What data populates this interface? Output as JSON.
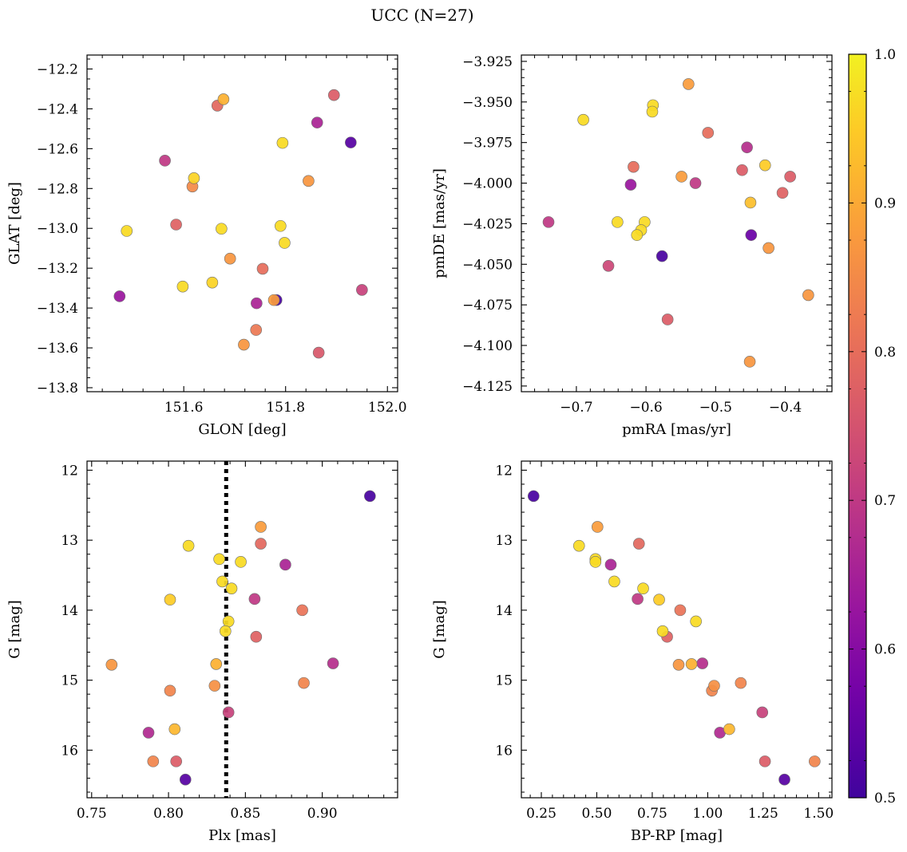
{
  "figure": {
    "title": "UCC (N=27)"
  },
  "colorbar": {
    "min": 0.5,
    "max": 1.0,
    "ticks": [
      0.5,
      0.6,
      0.7,
      0.8,
      0.9,
      1.0
    ],
    "tick_labels": [
      "0.5",
      "0.6",
      "0.7",
      "0.8",
      "0.9",
      "1.0"
    ],
    "colormap": "plasma",
    "colormap_range": [
      0.1,
      0.98
    ]
  },
  "chart_data": [
    {
      "type": "scatter",
      "xlabel": "GLON [deg]",
      "ylabel": "GLAT [deg]",
      "xlim": [
        151.41,
        152.02
      ],
      "ylim": [
        -13.82,
        -12.13
      ],
      "xticks": [
        151.6,
        151.8,
        152.0
      ],
      "xtick_labels": [
        "151.6",
        "151.8",
        "152.0"
      ],
      "yticks": [
        -13.8,
        -13.6,
        -13.4,
        -13.2,
        -13.0,
        -12.8,
        -12.6,
        -12.4,
        -12.2
      ],
      "ytick_labels": [
        "−13.8",
        "−13.6",
        "−13.4",
        "−13.2",
        "−13.0",
        "−12.8",
        "−12.6",
        "−12.4",
        "−12.2"
      ],
      "invert_y": false,
      "points": [
        {
          "x": 151.678,
          "y": -12.352,
          "c": 0.91
        },
        {
          "x": 151.666,
          "y": -12.384,
          "c": 0.79
        },
        {
          "x": 151.895,
          "y": -12.331,
          "c": 0.77
        },
        {
          "x": 151.862,
          "y": -12.469,
          "c": 0.66
        },
        {
          "x": 151.928,
          "y": -12.569,
          "c": 0.53
        },
        {
          "x": 151.794,
          "y": -12.571,
          "c": 0.97
        },
        {
          "x": 151.563,
          "y": -12.66,
          "c": 0.7
        },
        {
          "x": 151.62,
          "y": -12.748,
          "c": 0.96
        },
        {
          "x": 151.617,
          "y": -12.79,
          "c": 0.85
        },
        {
          "x": 151.845,
          "y": -12.762,
          "c": 0.87
        },
        {
          "x": 151.488,
          "y": -13.013,
          "c": 0.97
        },
        {
          "x": 151.585,
          "y": -12.981,
          "c": 0.78
        },
        {
          "x": 151.674,
          "y": -13.002,
          "c": 0.97
        },
        {
          "x": 151.79,
          "y": -12.988,
          "c": 0.97
        },
        {
          "x": 151.798,
          "y": -13.073,
          "c": 0.97
        },
        {
          "x": 151.691,
          "y": -13.152,
          "c": 0.87
        },
        {
          "x": 151.755,
          "y": -13.203,
          "c": 0.8
        },
        {
          "x": 151.598,
          "y": -13.292,
          "c": 0.97
        },
        {
          "x": 151.656,
          "y": -13.272,
          "c": 0.96
        },
        {
          "x": 151.474,
          "y": -13.341,
          "c": 0.63
        },
        {
          "x": 151.95,
          "y": -13.309,
          "c": 0.72
        },
        {
          "x": 151.743,
          "y": -13.376,
          "c": 0.66
        },
        {
          "x": 151.782,
          "y": -13.36,
          "c": 0.51
        },
        {
          "x": 151.777,
          "y": -13.36,
          "c": 0.88
        },
        {
          "x": 151.742,
          "y": -13.51,
          "c": 0.82
        },
        {
          "x": 151.718,
          "y": -13.584,
          "c": 0.87
        },
        {
          "x": 151.865,
          "y": -13.624,
          "c": 0.76
        }
      ]
    },
    {
      "type": "scatter",
      "xlabel": "pmRA [mas/yr]",
      "ylabel": "pmDE [mas/yr]",
      "xlim": [
        -0.779,
        -0.333
      ],
      "ylim": [
        -4.1285,
        -3.9211
      ],
      "xticks": [
        -0.7,
        -0.6,
        -0.5,
        -0.4
      ],
      "xtick_labels": [
        "−0.7",
        "−0.6",
        "−0.5",
        "−0.4"
      ],
      "yticks": [
        -4.125,
        -4.1,
        -4.075,
        -4.05,
        -4.025,
        -4.0,
        -3.975,
        -3.95,
        -3.925
      ],
      "ytick_labels": [
        "−4.125",
        "−4.100",
        "−4.075",
        "−4.050",
        "−4.025",
        "−4.000",
        "−3.975",
        "−3.950",
        "−3.925"
      ],
      "invert_y": false,
      "points": [
        {
          "x": -0.539,
          "y": -3.939,
          "c": 0.88
        },
        {
          "x": -0.59,
          "y": -3.952,
          "c": 0.97
        },
        {
          "x": -0.591,
          "y": -3.956,
          "c": 0.97
        },
        {
          "x": -0.69,
          "y": -3.961,
          "c": 0.97
        },
        {
          "x": -0.511,
          "y": -3.969,
          "c": 0.8
        },
        {
          "x": -0.455,
          "y": -3.978,
          "c": 0.68
        },
        {
          "x": -0.429,
          "y": -3.989,
          "c": 0.95
        },
        {
          "x": -0.618,
          "y": -3.99,
          "c": 0.8
        },
        {
          "x": -0.462,
          "y": -3.992,
          "c": 0.77
        },
        {
          "x": -0.393,
          "y": -3.996,
          "c": 0.77
        },
        {
          "x": -0.549,
          "y": -3.996,
          "c": 0.88
        },
        {
          "x": -0.529,
          "y": -4.0,
          "c": 0.7
        },
        {
          "x": -0.622,
          "y": -4.001,
          "c": 0.63
        },
        {
          "x": -0.404,
          "y": -4.006,
          "c": 0.78
        },
        {
          "x": -0.45,
          "y": -4.012,
          "c": 0.93
        },
        {
          "x": -0.74,
          "y": -4.024,
          "c": 0.7
        },
        {
          "x": -0.641,
          "y": -4.024,
          "c": 0.97
        },
        {
          "x": -0.602,
          "y": -4.024,
          "c": 0.97
        },
        {
          "x": -0.607,
          "y": -4.029,
          "c": 0.97
        },
        {
          "x": -0.613,
          "y": -4.032,
          "c": 0.97
        },
        {
          "x": -0.449,
          "y": -4.032,
          "c": 0.56
        },
        {
          "x": -0.424,
          "y": -4.04,
          "c": 0.87
        },
        {
          "x": -0.577,
          "y": -4.045,
          "c": 0.51
        },
        {
          "x": -0.654,
          "y": -4.051,
          "c": 0.73
        },
        {
          "x": -0.367,
          "y": -4.069,
          "c": 0.87
        },
        {
          "x": -0.569,
          "y": -4.084,
          "c": 0.77
        },
        {
          "x": -0.451,
          "y": -4.11,
          "c": 0.87
        }
      ]
    },
    {
      "type": "scatter",
      "xlabel": "Plx [mas]",
      "ylabel": "G [mag]",
      "xlim": [
        0.747,
        0.949
      ],
      "ylim": [
        11.87,
        16.68
      ],
      "xticks": [
        0.75,
        0.8,
        0.85,
        0.9
      ],
      "xtick_labels": [
        "0.75",
        "0.80",
        "0.85",
        "0.90"
      ],
      "yticks": [
        12,
        13,
        14,
        15,
        16
      ],
      "ytick_labels": [
        "12",
        "13",
        "14",
        "15",
        "16"
      ],
      "invert_y": true,
      "vline": {
        "x": 0.8375,
        "style": "dotted"
      },
      "points": [
        {
          "x": 0.931,
          "y": 12.37,
          "c": 0.51
        },
        {
          "x": 0.86,
          "y": 12.81,
          "c": 0.88
        },
        {
          "x": 0.86,
          "y": 13.05,
          "c": 0.79
        },
        {
          "x": 0.813,
          "y": 13.08,
          "c": 0.97
        },
        {
          "x": 0.833,
          "y": 13.27,
          "c": 0.97
        },
        {
          "x": 0.847,
          "y": 13.31,
          "c": 0.97
        },
        {
          "x": 0.876,
          "y": 13.35,
          "c": 0.66
        },
        {
          "x": 0.835,
          "y": 13.59,
          "c": 0.97
        },
        {
          "x": 0.841,
          "y": 13.69,
          "c": 0.97
        },
        {
          "x": 0.801,
          "y": 13.85,
          "c": 0.95
        },
        {
          "x": 0.856,
          "y": 13.84,
          "c": 0.7
        },
        {
          "x": 0.887,
          "y": 14.0,
          "c": 0.81
        },
        {
          "x": 0.839,
          "y": 14.16,
          "c": 0.97
        },
        {
          "x": 0.837,
          "y": 14.3,
          "c": 0.97
        },
        {
          "x": 0.857,
          "y": 14.38,
          "c": 0.78
        },
        {
          "x": 0.763,
          "y": 14.78,
          "c": 0.87
        },
        {
          "x": 0.831,
          "y": 14.77,
          "c": 0.91
        },
        {
          "x": 0.907,
          "y": 14.76,
          "c": 0.68
        },
        {
          "x": 0.83,
          "y": 15.08,
          "c": 0.86
        },
        {
          "x": 0.888,
          "y": 15.04,
          "c": 0.84
        },
        {
          "x": 0.801,
          "y": 15.15,
          "c": 0.84
        },
        {
          "x": 0.839,
          "y": 15.46,
          "c": 0.72
        },
        {
          "x": 0.804,
          "y": 15.7,
          "c": 0.92
        },
        {
          "x": 0.787,
          "y": 15.75,
          "c": 0.67
        },
        {
          "x": 0.79,
          "y": 16.16,
          "c": 0.84
        },
        {
          "x": 0.805,
          "y": 16.16,
          "c": 0.77
        },
        {
          "x": 0.811,
          "y": 16.42,
          "c": 0.53
        }
      ]
    },
    {
      "type": "scatter",
      "xlabel": "BP-RP [mag]",
      "ylabel": "G [mag]",
      "xlim": [
        0.16,
        1.56
      ],
      "ylim": [
        11.87,
        16.68
      ],
      "xticks": [
        0.25,
        0.5,
        0.75,
        1.0,
        1.25,
        1.5
      ],
      "xtick_labels": [
        "0.25",
        "0.50",
        "0.75",
        "1.00",
        "1.25",
        "1.50"
      ],
      "yticks": [
        12,
        13,
        14,
        15,
        16
      ],
      "ytick_labels": [
        "12",
        "13",
        "14",
        "15",
        "16"
      ],
      "invert_y": true,
      "points": [
        {
          "x": 0.215,
          "y": 12.37,
          "c": 0.51
        },
        {
          "x": 0.503,
          "y": 12.81,
          "c": 0.88
        },
        {
          "x": 0.69,
          "y": 13.05,
          "c": 0.79
        },
        {
          "x": 0.42,
          "y": 13.08,
          "c": 0.97
        },
        {
          "x": 0.494,
          "y": 13.27,
          "c": 0.97
        },
        {
          "x": 0.494,
          "y": 13.31,
          "c": 0.97
        },
        {
          "x": 0.563,
          "y": 13.35,
          "c": 0.66
        },
        {
          "x": 0.579,
          "y": 13.59,
          "c": 0.97
        },
        {
          "x": 0.709,
          "y": 13.69,
          "c": 0.97
        },
        {
          "x": 0.781,
          "y": 13.85,
          "c": 0.95
        },
        {
          "x": 0.684,
          "y": 13.84,
          "c": 0.7
        },
        {
          "x": 0.876,
          "y": 14.0,
          "c": 0.81
        },
        {
          "x": 0.947,
          "y": 14.16,
          "c": 0.97
        },
        {
          "x": 0.797,
          "y": 14.3,
          "c": 0.97
        },
        {
          "x": 0.817,
          "y": 14.38,
          "c": 0.78
        },
        {
          "x": 0.869,
          "y": 14.78,
          "c": 0.87
        },
        {
          "x": 0.927,
          "y": 14.77,
          "c": 0.91
        },
        {
          "x": 0.976,
          "y": 14.76,
          "c": 0.68
        },
        {
          "x": 1.029,
          "y": 15.08,
          "c": 0.86
        },
        {
          "x": 1.149,
          "y": 15.04,
          "c": 0.84
        },
        {
          "x": 1.019,
          "y": 15.15,
          "c": 0.84
        },
        {
          "x": 1.246,
          "y": 15.46,
          "c": 0.72
        },
        {
          "x": 1.097,
          "y": 15.7,
          "c": 0.92
        },
        {
          "x": 1.055,
          "y": 15.75,
          "c": 0.67
        },
        {
          "x": 1.482,
          "y": 16.16,
          "c": 0.84
        },
        {
          "x": 1.258,
          "y": 16.16,
          "c": 0.77
        },
        {
          "x": 1.346,
          "y": 16.42,
          "c": 0.53
        }
      ]
    }
  ]
}
